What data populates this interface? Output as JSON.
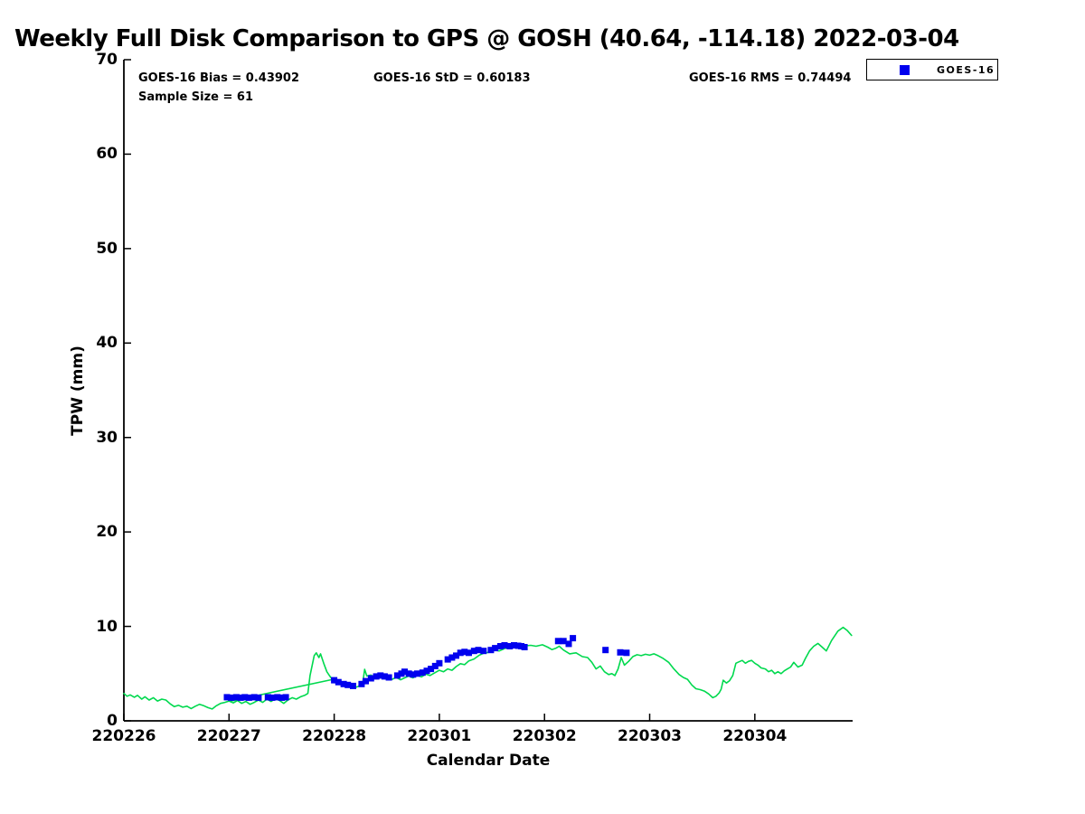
{
  "title": "Weekly Full Disk Comparison to GPS @ GOSH (40.64, -114.18) 2022-03-04",
  "stats": {
    "bias": "GOES-16 Bias = 0.43902",
    "std": "GOES-16 StD = 0.60183",
    "rms": "GOES-16 RMS = 0.74494",
    "sample_size": "Sample Size = 61"
  },
  "legend": {
    "label": "GOES-16",
    "marker_color": "#0000ee"
  },
  "axes": {
    "x_label": "Calendar Date",
    "y_label": "TPW (mm)"
  },
  "chart_data": {
    "type": "line+scatter",
    "title": "Weekly Full Disk Comparison to GPS @ GOSH (40.64, -114.18) 2022-03-04",
    "xlabel": "Calendar Date",
    "ylabel": "TPW (mm)",
    "x_axis": {
      "tick_labels": [
        "220226",
        "220227",
        "220228",
        "220301",
        "220302",
        "220303",
        "220304"
      ],
      "tick_days": [
        0,
        1,
        2,
        3,
        4,
        5,
        6
      ],
      "range_days": [
        0,
        6.93
      ],
      "note": "x unit = days after tick label 220226"
    },
    "y_axis": {
      "ticks": [
        0,
        10,
        20,
        30,
        40,
        50,
        60,
        70
      ],
      "range": [
        0,
        70
      ]
    },
    "grid": false,
    "legend_position": "top-right",
    "stats_values": {
      "bias": 0.43902,
      "std": 0.60183,
      "rms": 0.74494,
      "sample_size": 61
    },
    "series": [
      {
        "name": "GPS",
        "type": "line",
        "color": "#00d94e",
        "points": [
          [
            0.0,
            2.9
          ],
          [
            0.03,
            2.6
          ],
          [
            0.06,
            2.75
          ],
          [
            0.1,
            2.5
          ],
          [
            0.13,
            2.7
          ],
          [
            0.17,
            2.3
          ],
          [
            0.2,
            2.55
          ],
          [
            0.24,
            2.2
          ],
          [
            0.28,
            2.45
          ],
          [
            0.32,
            2.1
          ],
          [
            0.36,
            2.3
          ],
          [
            0.4,
            2.2
          ],
          [
            0.44,
            1.8
          ],
          [
            0.48,
            1.5
          ],
          [
            0.52,
            1.65
          ],
          [
            0.56,
            1.45
          ],
          [
            0.6,
            1.55
          ],
          [
            0.64,
            1.3
          ],
          [
            0.68,
            1.55
          ],
          [
            0.72,
            1.75
          ],
          [
            0.76,
            1.6
          ],
          [
            0.8,
            1.4
          ],
          [
            0.84,
            1.25
          ],
          [
            0.88,
            1.6
          ],
          [
            0.92,
            1.85
          ],
          [
            0.96,
            1.95
          ],
          [
            1.0,
            2.1
          ],
          [
            1.04,
            1.9
          ],
          [
            1.08,
            2.15
          ],
          [
            1.12,
            1.85
          ],
          [
            1.16,
            2.05
          ],
          [
            1.2,
            1.75
          ],
          [
            1.24,
            1.95
          ],
          [
            1.28,
            2.2
          ],
          [
            1.32,
            1.95
          ],
          [
            1.36,
            2.3
          ],
          [
            1.4,
            2.05
          ],
          [
            1.44,
            2.35
          ],
          [
            1.48,
            2.15
          ],
          [
            1.52,
            1.85
          ],
          [
            1.56,
            2.2
          ],
          [
            1.6,
            2.45
          ],
          [
            1.64,
            2.3
          ],
          [
            1.68,
            2.55
          ],
          [
            1.72,
            2.7
          ],
          [
            1.75,
            2.9
          ],
          [
            1.77,
            4.8
          ],
          [
            1.81,
            6.9
          ],
          [
            1.83,
            7.2
          ],
          [
            1.855,
            6.7
          ],
          [
            1.87,
            7.1
          ],
          [
            1.9,
            6.1
          ],
          [
            1.93,
            5.2
          ],
          [
            1.96,
            4.7
          ],
          [
            1.99,
            4.3
          ],
          [
            2.03,
            4.1
          ],
          [
            2.07,
            3.9
          ],
          [
            2.11,
            3.75
          ],
          [
            2.15,
            3.6
          ],
          [
            2.19,
            3.5
          ],
          [
            2.23,
            3.65
          ],
          [
            2.27,
            3.9
          ],
          [
            2.29,
            5.45
          ],
          [
            2.31,
            4.75
          ],
          [
            2.35,
            4.85
          ],
          [
            2.39,
            4.6
          ],
          [
            2.43,
            4.75
          ],
          [
            2.47,
            4.5
          ],
          [
            2.51,
            4.65
          ],
          [
            2.55,
            4.4
          ],
          [
            2.59,
            4.6
          ],
          [
            2.63,
            4.35
          ],
          [
            2.67,
            4.55
          ],
          [
            2.71,
            4.75
          ],
          [
            2.75,
            4.55
          ],
          [
            2.79,
            4.85
          ],
          [
            2.83,
            4.65
          ],
          [
            2.87,
            4.95
          ],
          [
            2.91,
            4.8
          ],
          [
            2.95,
            5.05
          ],
          [
            3.0,
            5.35
          ],
          [
            3.04,
            5.2
          ],
          [
            3.08,
            5.5
          ],
          [
            3.12,
            5.35
          ],
          [
            3.16,
            5.75
          ],
          [
            3.2,
            6.05
          ],
          [
            3.24,
            5.95
          ],
          [
            3.28,
            6.35
          ],
          [
            3.33,
            6.55
          ],
          [
            3.38,
            6.95
          ],
          [
            3.43,
            7.2
          ],
          [
            3.47,
            7.25
          ],
          [
            3.52,
            7.5
          ],
          [
            3.57,
            7.4
          ],
          [
            3.62,
            7.65
          ],
          [
            3.67,
            7.8
          ],
          [
            3.72,
            7.9
          ],
          [
            3.77,
            7.85
          ],
          [
            3.82,
            7.95
          ],
          [
            3.87,
            8.0
          ],
          [
            3.92,
            7.9
          ],
          [
            3.98,
            8.05
          ],
          [
            4.03,
            7.8
          ],
          [
            4.07,
            7.55
          ],
          [
            4.11,
            7.7
          ],
          [
            4.14,
            7.9
          ],
          [
            4.18,
            7.5
          ],
          [
            4.24,
            7.1
          ],
          [
            4.3,
            7.2
          ],
          [
            4.36,
            6.8
          ],
          [
            4.41,
            6.7
          ],
          [
            4.45,
            6.2
          ],
          [
            4.49,
            5.5
          ],
          [
            4.53,
            5.8
          ],
          [
            4.57,
            5.2
          ],
          [
            4.61,
            4.9
          ],
          [
            4.64,
            5.0
          ],
          [
            4.67,
            4.8
          ],
          [
            4.7,
            5.5
          ],
          [
            4.73,
            6.7
          ],
          [
            4.76,
            5.9
          ],
          [
            4.8,
            6.3
          ],
          [
            4.84,
            6.8
          ],
          [
            4.88,
            7.0
          ],
          [
            4.92,
            6.9
          ],
          [
            4.96,
            7.05
          ],
          [
            5.0,
            6.95
          ],
          [
            5.04,
            7.1
          ],
          [
            5.08,
            6.9
          ],
          [
            5.13,
            6.6
          ],
          [
            5.18,
            6.2
          ],
          [
            5.23,
            5.5
          ],
          [
            5.28,
            4.9
          ],
          [
            5.32,
            4.6
          ],
          [
            5.36,
            4.4
          ],
          [
            5.4,
            3.8
          ],
          [
            5.44,
            3.4
          ],
          [
            5.48,
            3.3
          ],
          [
            5.52,
            3.15
          ],
          [
            5.56,
            2.85
          ],
          [
            5.6,
            2.45
          ],
          [
            5.63,
            2.6
          ],
          [
            5.66,
            2.95
          ],
          [
            5.68,
            3.35
          ],
          [
            5.7,
            4.3
          ],
          [
            5.73,
            4.0
          ],
          [
            5.76,
            4.25
          ],
          [
            5.79,
            4.8
          ],
          [
            5.82,
            6.1
          ],
          [
            5.85,
            6.25
          ],
          [
            5.88,
            6.4
          ],
          [
            5.91,
            6.1
          ],
          [
            5.94,
            6.3
          ],
          [
            5.97,
            6.4
          ],
          [
            6.0,
            6.1
          ],
          [
            6.03,
            5.9
          ],
          [
            6.06,
            5.6
          ],
          [
            6.1,
            5.5
          ],
          [
            6.13,
            5.2
          ],
          [
            6.16,
            5.35
          ],
          [
            6.19,
            5.0
          ],
          [
            6.22,
            5.2
          ],
          [
            6.25,
            5.0
          ],
          [
            6.28,
            5.3
          ],
          [
            6.31,
            5.5
          ],
          [
            6.34,
            5.7
          ],
          [
            6.37,
            6.2
          ],
          [
            6.41,
            5.7
          ],
          [
            6.45,
            5.9
          ],
          [
            6.48,
            6.6
          ],
          [
            6.52,
            7.4
          ],
          [
            6.56,
            7.9
          ],
          [
            6.6,
            8.2
          ],
          [
            6.64,
            7.8
          ],
          [
            6.68,
            7.4
          ],
          [
            6.73,
            8.5
          ],
          [
            6.79,
            9.5
          ],
          [
            6.84,
            9.9
          ],
          [
            6.88,
            9.55
          ],
          [
            6.92,
            9.05
          ]
        ]
      },
      {
        "name": "GPS gap bridge",
        "type": "line",
        "color": "#00d94e",
        "points": [
          [
            1.02,
            2.1
          ],
          [
            1.99,
            4.4
          ]
        ]
      },
      {
        "name": "GOES-16",
        "type": "scatter",
        "marker": "square",
        "color": "#0000ee",
        "points": [
          [
            0.98,
            2.5
          ],
          [
            1.02,
            2.45
          ],
          [
            1.07,
            2.5
          ],
          [
            1.11,
            2.45
          ],
          [
            1.15,
            2.5
          ],
          [
            1.19,
            2.45
          ],
          [
            1.24,
            2.5
          ],
          [
            1.28,
            2.45
          ],
          [
            1.37,
            2.5
          ],
          [
            1.41,
            2.45
          ],
          [
            1.46,
            2.5
          ],
          [
            1.5,
            2.45
          ],
          [
            1.54,
            2.5
          ],
          [
            2.0,
            4.3
          ],
          [
            2.04,
            4.1
          ],
          [
            2.09,
            3.9
          ],
          [
            2.13,
            3.8
          ],
          [
            2.18,
            3.7
          ],
          [
            2.26,
            3.9
          ],
          [
            2.3,
            4.2
          ],
          [
            2.35,
            4.5
          ],
          [
            2.4,
            4.7
          ],
          [
            2.44,
            4.8
          ],
          [
            2.48,
            4.7
          ],
          [
            2.52,
            4.6
          ],
          [
            2.6,
            4.8
          ],
          [
            2.64,
            5.0
          ],
          [
            2.67,
            5.2
          ],
          [
            2.71,
            5.0
          ],
          [
            2.75,
            4.9
          ],
          [
            2.79,
            5.0
          ],
          [
            2.84,
            5.1
          ],
          [
            2.88,
            5.3
          ],
          [
            2.92,
            5.5
          ],
          [
            2.96,
            5.8
          ],
          [
            3.0,
            6.1
          ],
          [
            3.08,
            6.5
          ],
          [
            3.12,
            6.7
          ],
          [
            3.16,
            6.9
          ],
          [
            3.2,
            7.2
          ],
          [
            3.24,
            7.3
          ],
          [
            3.28,
            7.2
          ],
          [
            3.33,
            7.4
          ],
          [
            3.37,
            7.5
          ],
          [
            3.42,
            7.4
          ],
          [
            3.49,
            7.5
          ],
          [
            3.53,
            7.7
          ],
          [
            3.58,
            7.9
          ],
          [
            3.62,
            8.0
          ],
          [
            3.67,
            7.9
          ],
          [
            3.71,
            8.0
          ],
          [
            3.75,
            7.95
          ],
          [
            3.78,
            7.9
          ],
          [
            3.81,
            7.8
          ],
          [
            4.13,
            8.45
          ],
          [
            4.18,
            8.45
          ],
          [
            4.23,
            8.15
          ],
          [
            4.27,
            8.75
          ],
          [
            4.58,
            7.5
          ],
          [
            4.72,
            7.25
          ],
          [
            4.78,
            7.2
          ]
        ]
      }
    ]
  }
}
